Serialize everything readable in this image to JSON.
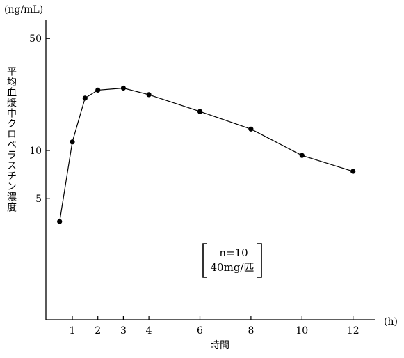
{
  "chart_data": {
    "type": "line",
    "title": "",
    "xlabel": "時間",
    "ylabel": "平均血漿中クロペラスチン濃度",
    "x_unit": "(h)",
    "y_unit": "(ng/mL)",
    "y_scale": "log",
    "ylim": [
      1.5,
      60
    ],
    "xlim": [
      -1.1,
      12.9
    ],
    "x_ticks": [
      1,
      2,
      3,
      4,
      6,
      8,
      10,
      12
    ],
    "x_tick_labels": [
      "1",
      "2",
      "3",
      "4",
      "6",
      "8",
      "10",
      "12"
    ],
    "y_ticks": [
      5,
      10,
      50
    ],
    "y_tick_labels": [
      "5",
      "10",
      "50"
    ],
    "grid": false,
    "series": [
      {
        "x": [
          0.5,
          1.0,
          1.5,
          2.0,
          3.0,
          4.0,
          6.0,
          8.0,
          10.0,
          12.0
        ],
        "y": [
          3.6,
          11.3,
          21.2,
          23.8,
          24.5,
          22.3,
          17.5,
          13.6,
          9.3,
          7.4
        ]
      }
    ],
    "annotation": {
      "lines": [
        "n=10",
        "40mg/匹"
      ]
    }
  }
}
